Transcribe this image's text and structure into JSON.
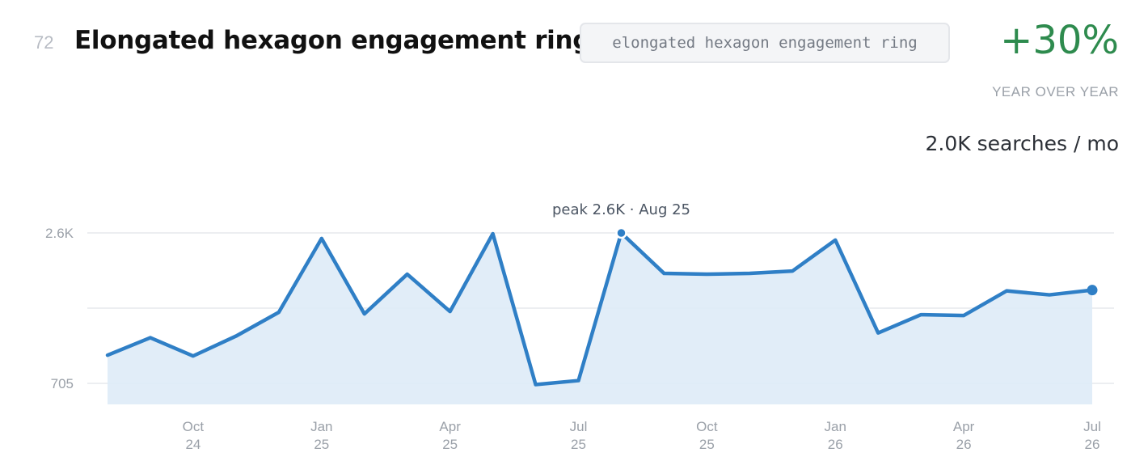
{
  "header": {
    "rank": "72",
    "title": "Elongated hexagon engagement rings",
    "query": "elongated hexagon engagement ring",
    "change": "+30%",
    "change_label": "YEAR OVER YEAR",
    "volume": "2.0K searches / mo"
  },
  "colors": {
    "line": "#2f7fc6",
    "area": "#deebf7",
    "positive": "#2e8b4e",
    "grid": "#eceef1"
  },
  "chart_data": {
    "type": "area",
    "x": [
      "2024-08",
      "2024-09",
      "2024-10",
      "2024-11",
      "2024-12",
      "2025-01",
      "2025-02",
      "2025-03",
      "2025-04",
      "2025-05",
      "2025-06",
      "2025-07",
      "2025-08",
      "2025-09",
      "2025-10",
      "2025-11",
      "2025-12",
      "2026-01",
      "2026-02",
      "2026-03",
      "2026-04",
      "2026-05",
      "2026-06",
      "2026-07"
    ],
    "values": [
      1060,
      1280,
      1050,
      1300,
      1600,
      2530,
      1580,
      2080,
      1610,
      2590,
      690,
      740,
      2600,
      2090,
      2080,
      2090,
      2120,
      2510,
      1340,
      1570,
      1560,
      1870,
      1820,
      1880
    ],
    "ylim": [
      420,
      2600
    ],
    "yticks": [
      {
        "value": 2600,
        "label": "2.6K"
      },
      {
        "value": 705,
        "label": "705"
      }
    ],
    "xticks": [
      {
        "index": 2,
        "month": "Oct",
        "year": "24"
      },
      {
        "index": 5,
        "month": "Jan",
        "year": "25"
      },
      {
        "index": 8,
        "month": "Apr",
        "year": "25"
      },
      {
        "index": 11,
        "month": "Jul",
        "year": "25"
      },
      {
        "index": 14,
        "month": "Oct",
        "year": "25"
      },
      {
        "index": 17,
        "month": "Jan",
        "year": "26"
      },
      {
        "index": 20,
        "month": "Apr",
        "year": "26"
      },
      {
        "index": 23,
        "month": "Jul",
        "year": "26"
      }
    ],
    "peak": {
      "index": 12,
      "label": "peak 2.6K · Aug 25"
    },
    "grid": true
  }
}
